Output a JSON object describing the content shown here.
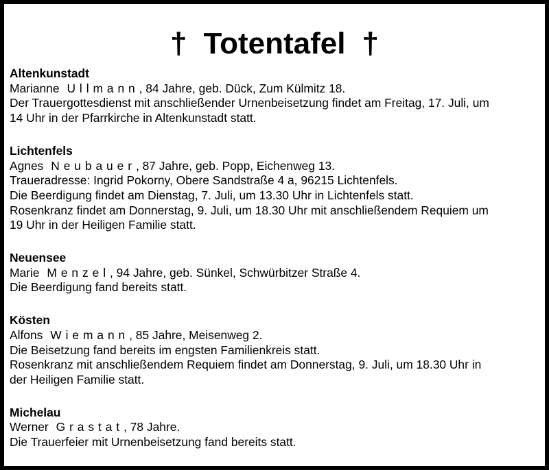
{
  "title": {
    "cross": "†",
    "text": "Totentafel"
  },
  "sections": [
    {
      "place": "Altenkunstadt",
      "first_name": "Marianne",
      "surname": "Ullmann",
      "details": ", 84 Jahre, geb. Dück, Zum Külmitz 18.",
      "lines": [
        "Der Trauergottesdienst mit anschließender Urnenbeisetzung findet am Freitag, 17. Juli, um",
        "14 Uhr in der Pfarrkirche in Altenkunstadt statt."
      ]
    },
    {
      "place": "Lichtenfels",
      "first_name": "Agnes",
      "surname": "Neubauer",
      "details": ", 87 Jahre, geb. Popp, Eichenweg 13.",
      "lines": [
        "Traueradresse: Ingrid Pokorny, Obere Sandstraße 4 a, 96215 Lichtenfels.",
        "Die Beerdigung findet am Dienstag, 7. Juli, um 13.30 Uhr in Lichtenfels statt.",
        "Rosenkranz findet am Donnerstag, 9. Juli, um 18.30 Uhr mit anschließendem Requiem um",
        "19 Uhr in der Heiligen Familie statt."
      ]
    },
    {
      "place": "Neuensee",
      "first_name": "Marie",
      "surname": "Menzel",
      "details": ", 94 Jahre, geb. Sünkel, Schwürbitzer Straße 4.",
      "lines": [
        "Die Beerdigung fand bereits statt."
      ]
    },
    {
      "place": "Kösten",
      "first_name": "Alfons",
      "surname": "Wiemann",
      "details": ", 85 Jahre, Meisenweg 2.",
      "lines": [
        "Die Beisetzung fand bereits im engsten Familienkreis statt.",
        "Rosenkranz mit anschließendem Requiem findet am Donnerstag, 9. Juli, um 18.30 Uhr in",
        "der Heiligen Familie statt."
      ]
    },
    {
      "place": "Michelau",
      "first_name": "Werner",
      "surname": "Grastat",
      "details": ", 78 Jahre.",
      "lines": [
        "Die Trauerfeier mit Urnenbeisetzung fand bereits statt."
      ]
    }
  ]
}
